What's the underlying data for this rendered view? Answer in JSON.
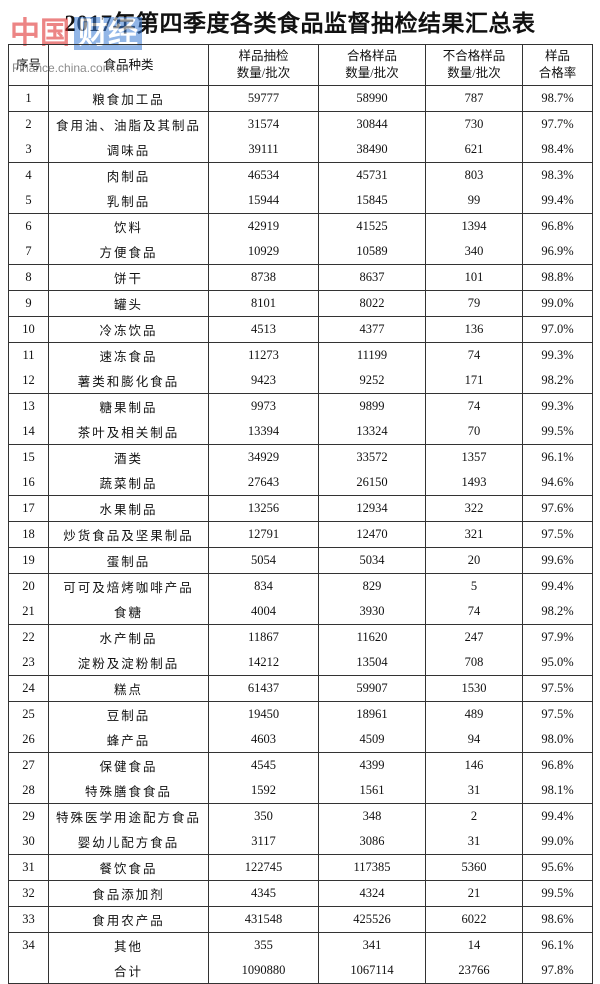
{
  "title": "2017年第四季度各类食品监督抽检结果汇总表",
  "watermark": {
    "logo_red": "中国",
    "logo_blue": "财经",
    "url": "Finance.china.com.cn"
  },
  "table": {
    "columns": [
      [
        "序号"
      ],
      [
        "食品种类"
      ],
      [
        "样品抽检",
        "数量/批次"
      ],
      [
        "合格样品",
        "数量/批次"
      ],
      [
        "不合格样品",
        "数量/批次"
      ],
      [
        "样品",
        "合格率"
      ]
    ],
    "rows": [
      {
        "no": "1",
        "name": "粮食加工品",
        "cells": [
          "59777",
          "58990",
          "787",
          "98.7%"
        ]
      },
      {
        "no": "2",
        "name": "食用油、油脂及其制品",
        "cells": [
          "31574",
          "30844",
          "730",
          "97.7%"
        ]
      },
      {
        "no": "3",
        "name": "调味品",
        "cells": [
          "39111",
          "38490",
          "621",
          "98.4%"
        ]
      },
      {
        "no": "4",
        "name": "肉制品",
        "cells": [
          "46534",
          "45731",
          "803",
          "98.3%"
        ]
      },
      {
        "no": "5",
        "name": "乳制品",
        "cells": [
          "15944",
          "15845",
          "99",
          "99.4%"
        ]
      },
      {
        "no": "6",
        "name": "饮料",
        "cells": [
          "42919",
          "41525",
          "1394",
          "96.8%"
        ]
      },
      {
        "no": "7",
        "name": "方便食品",
        "cells": [
          "10929",
          "10589",
          "340",
          "96.9%"
        ]
      },
      {
        "no": "8",
        "name": "饼干",
        "cells": [
          "8738",
          "8637",
          "101",
          "98.8%"
        ]
      },
      {
        "no": "9",
        "name": "罐头",
        "cells": [
          "8101",
          "8022",
          "79",
          "99.0%"
        ]
      },
      {
        "no": "10",
        "name": "冷冻饮品",
        "cells": [
          "4513",
          "4377",
          "136",
          "97.0%"
        ]
      },
      {
        "no": "11",
        "name": "速冻食品",
        "cells": [
          "11273",
          "11199",
          "74",
          "99.3%"
        ]
      },
      {
        "no": "12",
        "name": "薯类和膨化食品",
        "cells": [
          "9423",
          "9252",
          "171",
          "98.2%"
        ]
      },
      {
        "no": "13",
        "name": "糖果制品",
        "cells": [
          "9973",
          "9899",
          "74",
          "99.3%"
        ]
      },
      {
        "no": "14",
        "name": "茶叶及相关制品",
        "cells": [
          "13394",
          "13324",
          "70",
          "99.5%"
        ]
      },
      {
        "no": "15",
        "name": "酒类",
        "cells": [
          "34929",
          "33572",
          "1357",
          "96.1%"
        ]
      },
      {
        "no": "16",
        "name": "蔬菜制品",
        "cells": [
          "27643",
          "26150",
          "1493",
          "94.6%"
        ]
      },
      {
        "no": "17",
        "name": "水果制品",
        "cells": [
          "13256",
          "12934",
          "322",
          "97.6%"
        ]
      },
      {
        "no": "18",
        "name": "炒货食品及坚果制品",
        "cells": [
          "12791",
          "12470",
          "321",
          "97.5%"
        ]
      },
      {
        "no": "19",
        "name": "蛋制品",
        "cells": [
          "5054",
          "5034",
          "20",
          "99.6%"
        ]
      },
      {
        "no": "20",
        "name": "可可及焙烤咖啡产品",
        "cells": [
          "834",
          "829",
          "5",
          "99.4%"
        ]
      },
      {
        "no": "21",
        "name": "食糖",
        "cells": [
          "4004",
          "3930",
          "74",
          "98.2%"
        ]
      },
      {
        "no": "22",
        "name": "水产制品",
        "cells": [
          "11867",
          "11620",
          "247",
          "97.9%"
        ]
      },
      {
        "no": "23",
        "name": "淀粉及淀粉制品",
        "cells": [
          "14212",
          "13504",
          "708",
          "95.0%"
        ]
      },
      {
        "no": "24",
        "name": "糕点",
        "cells": [
          "61437",
          "59907",
          "1530",
          "97.5%"
        ]
      },
      {
        "no": "25",
        "name": "豆制品",
        "cells": [
          "19450",
          "18961",
          "489",
          "97.5%"
        ]
      },
      {
        "no": "26",
        "name": "蜂产品",
        "cells": [
          "4603",
          "4509",
          "94",
          "98.0%"
        ]
      },
      {
        "no": "27",
        "name": "保健食品",
        "cells": [
          "4545",
          "4399",
          "146",
          "96.8%"
        ]
      },
      {
        "no": "28",
        "name": "特殊膳食食品",
        "cells": [
          "1592",
          "1561",
          "31",
          "98.1%"
        ]
      },
      {
        "no": "29",
        "name": "特殊医学用途配方食品",
        "cells": [
          "350",
          "348",
          "2",
          "99.4%"
        ]
      },
      {
        "no": "30",
        "name": "婴幼儿配方食品",
        "cells": [
          "3117",
          "3086",
          "31",
          "99.0%"
        ]
      },
      {
        "no": "31",
        "name": "餐饮食品",
        "cells": [
          "122745",
          "117385",
          "5360",
          "95.6%"
        ]
      },
      {
        "no": "32",
        "name": "食品添加剂",
        "cells": [
          "4345",
          "4324",
          "21",
          "99.5%"
        ]
      },
      {
        "no": "33",
        "name": "食用农产品",
        "cells": [
          "431548",
          "425526",
          "6022",
          "98.6%"
        ]
      },
      {
        "no": "34",
        "name": "其他",
        "cells": [
          "355",
          "341",
          "14",
          "96.1%"
        ]
      }
    ],
    "total": {
      "name": "合计",
      "cells": [
        "1090880",
        "1067114",
        "23766",
        "97.8%"
      ]
    }
  }
}
